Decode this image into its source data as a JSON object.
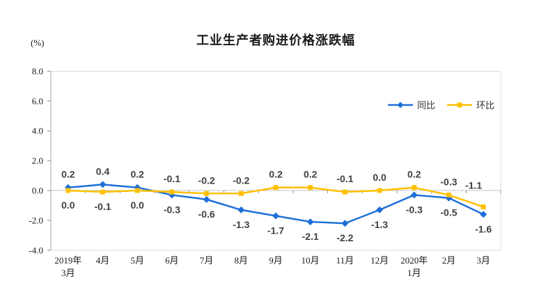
{
  "chart_data": {
    "type": "line",
    "title": "工业生产者购进价格涨跌幅",
    "unit_label": "(%)",
    "categories": [
      "2019年|3月",
      "4月",
      "5月",
      "6月",
      "7月",
      "8月",
      "9月",
      "10月",
      "11月",
      "12月",
      "2020年|1月",
      "2月",
      "3月"
    ],
    "series": [
      {
        "name": "同比",
        "color": "#1E6FD8",
        "marker": "diamond",
        "values": [
          0.2,
          0.4,
          0.2,
          -0.3,
          -0.6,
          -1.3,
          -1.7,
          -2.1,
          -2.2,
          -1.3,
          -0.3,
          -0.5,
          -1.6
        ]
      },
      {
        "name": "环比",
        "color": "#FFC000",
        "marker": "square",
        "values": [
          0.0,
          -0.1,
          0.0,
          -0.1,
          -0.2,
          -0.2,
          0.2,
          0.2,
          -0.1,
          0.0,
          0.2,
          -0.3,
          -1.1
        ]
      }
    ],
    "ylim": [
      -4.0,
      8.0
    ],
    "ytick_step": 2.0,
    "ytick_labels": [
      "8.0",
      "6.0",
      "4.0",
      "2.0",
      "0.0",
      "-2.0",
      "-4.0"
    ],
    "grid": "zero-line-only",
    "data_labels": true,
    "legend_position": "upper-right-inside"
  },
  "colors": {
    "plot_border": "#DCDCDC",
    "left_axis": "#A6A6A6",
    "zero_line": "#C6C6C6",
    "tick_mark": "#8C8C8C"
  }
}
